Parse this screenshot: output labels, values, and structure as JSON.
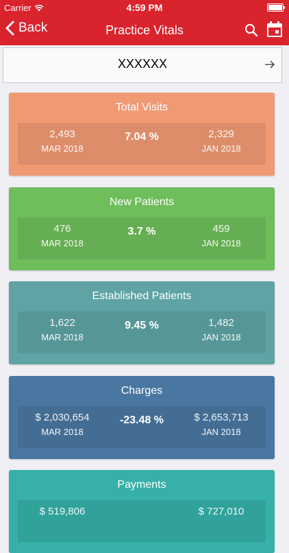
{
  "status": {
    "carrier": "Carrier",
    "time": "4:59 PM"
  },
  "nav": {
    "back_label": "Back",
    "title": "Practice Vitals"
  },
  "selector": {
    "value": "XXXXXX"
  },
  "colors": {
    "nav": "#d9232d",
    "total_visits": "#f09a74",
    "new_patients": "#6fbd5b",
    "established_patients": "#5fa3a4",
    "charges": "#4a77a1",
    "payments": "#36b0a8"
  },
  "cards": [
    {
      "title": "Total Visits",
      "current_value": "2,493",
      "current_period": "MAR 2018",
      "change": "7.04 %",
      "previous_value": "2,329",
      "previous_period": "JAN 2018"
    },
    {
      "title": "New Patients",
      "current_value": "476",
      "current_period": "MAR 2018",
      "change": "3.7 %",
      "previous_value": "459",
      "previous_period": "JAN 2018"
    },
    {
      "title": "Established Patients",
      "current_value": "1,622",
      "current_period": "MAR 2018",
      "change": "9.45 %",
      "previous_value": "1,482",
      "previous_period": "JAN 2018"
    },
    {
      "title": "Charges",
      "current_value": "$ 2,030,654",
      "current_period": "MAR 2018",
      "change": "-23.48 %",
      "previous_value": "$ 2,653,713",
      "previous_period": "JAN 2018"
    },
    {
      "title": "Payments",
      "current_value": "$ 519,806",
      "current_period": "",
      "change": "",
      "previous_value": "$ 727,010",
      "previous_period": ""
    }
  ]
}
